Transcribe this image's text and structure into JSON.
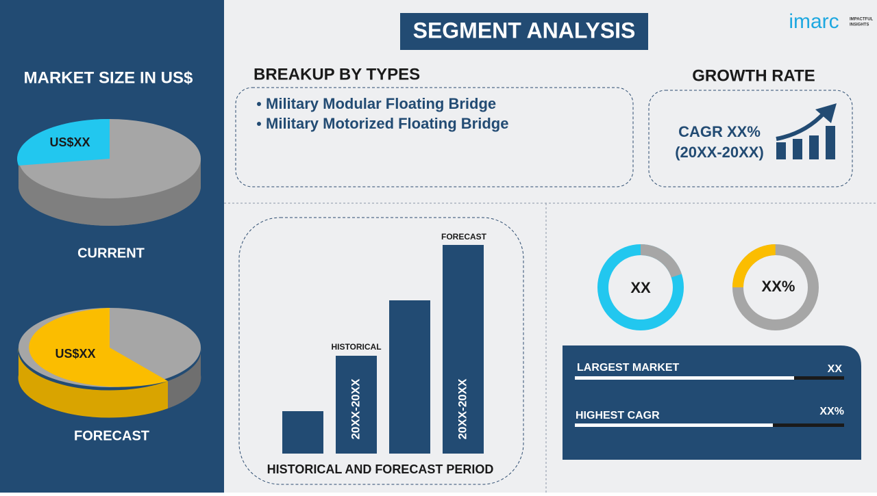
{
  "header": {
    "title": "SEGMENT ANALYSIS",
    "logo": "imarc",
    "logo_tagline": [
      "IMPACTFUL",
      "INSIGHTS"
    ]
  },
  "left_panel": {
    "title": "MARKET SIZE IN US$",
    "current": {
      "value_label": "US$XX",
      "label": "CURRENT"
    },
    "forecast": {
      "value_label": "US$XX",
      "label": "FORECAST"
    }
  },
  "breakup": {
    "title": "BREAKUP BY TYPES",
    "items": [
      "Military Modular Floating Bridge",
      "Military Motorized Floating Bridge"
    ]
  },
  "growth": {
    "title": "GROWTH RATE",
    "cagr": "CAGR XX%",
    "period": "(20XX-20XX)"
  },
  "period_chart": {
    "title": "HISTORICAL AND FORECAST PERIOD",
    "historical_label": "HISTORICAL",
    "forecast_label": "FORECAST",
    "historical_period": "20XX-20XX",
    "forecast_period": "20XX-20XX"
  },
  "donuts": [
    "XX",
    "XX%"
  ],
  "stats": [
    {
      "label": "LARGEST MARKET",
      "value": "XX"
    },
    {
      "label": "HIGHEST CAGR",
      "value": "XX%"
    }
  ]
}
